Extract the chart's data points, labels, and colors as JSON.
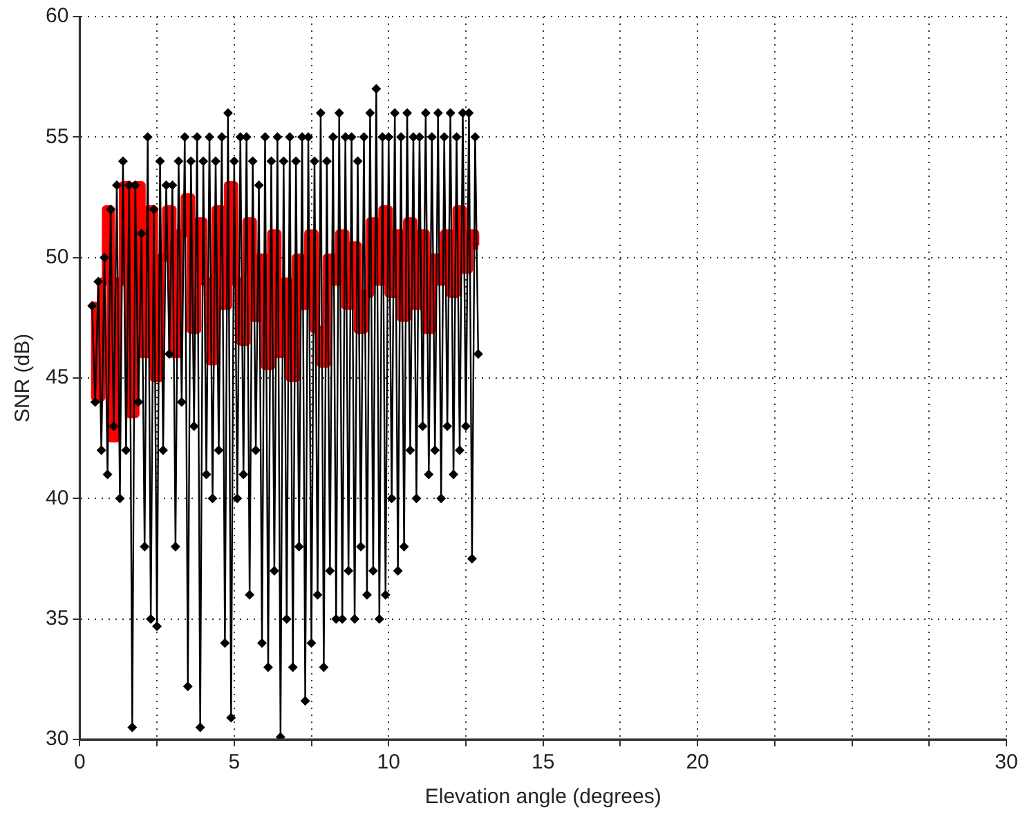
{
  "chart_data": {
    "type": "line",
    "xlabel": "Elevation angle (degrees)",
    "ylabel": "SNR (dB)",
    "xlim": [
      0,
      30
    ],
    "xticks": [
      0,
      {
        "value": 2.5,
        "label": null
      },
      5,
      {
        "value": 7.5,
        "label": null
      },
      10,
      {
        "value": 12.5,
        "label": null
      },
      15,
      {
        "value": 17.5,
        "label": null
      },
      20,
      {
        "value": 22.5,
        "label": null
      },
      {
        "value": 25,
        "label": null
      },
      {
        "value": 27.5,
        "label": null
      },
      30
    ],
    "ylim": [
      30,
      60
    ],
    "yticks": [
      30,
      35,
      40,
      45,
      50,
      55,
      60
    ],
    "grid": true,
    "line_style": "solid",
    "series": [
      {
        "type": "line",
        "color": "#000000",
        "marker": "diamond",
        "x": [
          0.4,
          0.5,
          0.6,
          0.7,
          0.8,
          0.9,
          1.0,
          1.1,
          1.2,
          1.3,
          1.4,
          1.5,
          1.6,
          1.7,
          1.8,
          1.9,
          2.0,
          2.1,
          2.2,
          2.3,
          2.4,
          2.5,
          2.6,
          2.7,
          2.8,
          2.9,
          3.0,
          3.1,
          3.2,
          3.3,
          3.4,
          3.5,
          3.6,
          3.7,
          3.8,
          3.9,
          4.0,
          4.1,
          4.2,
          4.3,
          4.4,
          4.5,
          4.6,
          4.7,
          4.8,
          4.9,
          5.0,
          5.1,
          5.2,
          5.3,
          5.4,
          5.5,
          5.6,
          5.7,
          5.8,
          5.9,
          6.0,
          6.1,
          6.2,
          6.3,
          6.4,
          6.5,
          6.6,
          6.7,
          6.8,
          6.9,
          7.0,
          7.1,
          7.2,
          7.3,
          7.4,
          7.5,
          7.6,
          7.7,
          7.8,
          7.9,
          8.0,
          8.1,
          8.2,
          8.3,
          8.4,
          8.5,
          8.6,
          8.7,
          8.8,
          8.9,
          9.0,
          9.1,
          9.2,
          9.3,
          9.4,
          9.5,
          9.6,
          9.7,
          9.8,
          9.9,
          10.0,
          10.1,
          10.2,
          10.3,
          10.4,
          10.5,
          10.6,
          10.7,
          10.8,
          10.9,
          11.0,
          11.1,
          11.2,
          11.3,
          11.4,
          11.5,
          11.6,
          11.7,
          11.8,
          11.9,
          12.0,
          12.1,
          12.2,
          12.3,
          12.4,
          12.5,
          12.6,
          12.7,
          12.8,
          12.9
        ],
        "values": [
          48,
          44,
          49,
          42,
          50,
          41,
          52,
          43,
          53,
          40,
          54,
          42,
          53,
          30.5,
          53,
          44,
          51,
          38,
          55,
          35,
          52,
          34.7,
          54,
          42,
          53,
          46,
          53,
          38,
          54,
          44,
          55,
          32.2,
          54,
          43,
          55,
          30.5,
          54,
          41,
          55,
          40,
          54,
          42,
          55,
          34,
          56,
          30.9,
          54,
          40,
          55,
          41,
          55,
          36,
          54,
          42,
          53,
          34,
          55,
          33,
          54,
          37,
          55,
          30.1,
          54,
          35,
          55,
          33,
          54,
          38,
          55,
          31.6,
          55,
          34,
          54,
          36,
          56,
          33,
          54,
          37,
          55,
          35,
          56,
          35,
          55,
          37,
          55,
          35,
          54,
          38,
          55,
          36,
          56,
          37,
          57,
          35,
          55,
          36,
          55,
          40,
          56,
          37,
          55,
          38,
          56,
          42,
          55,
          40,
          55,
          43,
          56,
          41,
          55,
          42,
          56,
          40,
          55,
          43,
          56,
          41,
          55,
          42,
          56,
          43,
          56,
          37.5,
          55,
          46
        ]
      },
      {
        "type": "step",
        "color": "#ff0000",
        "marker": "none",
        "x": [
          0.4,
          0.6,
          0.8,
          0.9,
          1.1,
          1.3,
          1.5,
          1.7,
          1.9,
          2.1,
          2.3,
          2.5,
          2.7,
          2.9,
          3.1,
          3.3,
          3.5,
          3.7,
          3.9,
          4.1,
          4.3,
          4.5,
          4.7,
          4.9,
          5.1,
          5.3,
          5.5,
          5.7,
          5.9,
          6.1,
          6.3,
          6.5,
          6.7,
          6.9,
          7.1,
          7.3,
          7.5,
          7.7,
          7.9,
          8.1,
          8.3,
          8.5,
          8.7,
          8.9,
          9.1,
          9.3,
          9.5,
          9.7,
          9.9,
          10.1,
          10.3,
          10.5,
          10.7,
          10.9,
          11.1,
          11.3,
          11.5,
          11.7,
          11.9,
          12.1,
          12.3,
          12.5,
          12.7,
          12.9
        ],
        "values": [
          48,
          44.2,
          49,
          52,
          42.5,
          49,
          53,
          43.5,
          53,
          46,
          52,
          45,
          50,
          52,
          46,
          51,
          52.5,
          47,
          51.5,
          49,
          45.7,
          52,
          48,
          53,
          49,
          46.5,
          51.5,
          47.5,
          50,
          45.5,
          51,
          46,
          49,
          45,
          50,
          48,
          51,
          47,
          45.6,
          50,
          49,
          51,
          48,
          50.5,
          47,
          48.5,
          51.5,
          49,
          52,
          48.5,
          51,
          47.5,
          51.5,
          48,
          51,
          47,
          50,
          49,
          51,
          48.5,
          52,
          49.5,
          51,
          50.5
        ]
      }
    ]
  }
}
